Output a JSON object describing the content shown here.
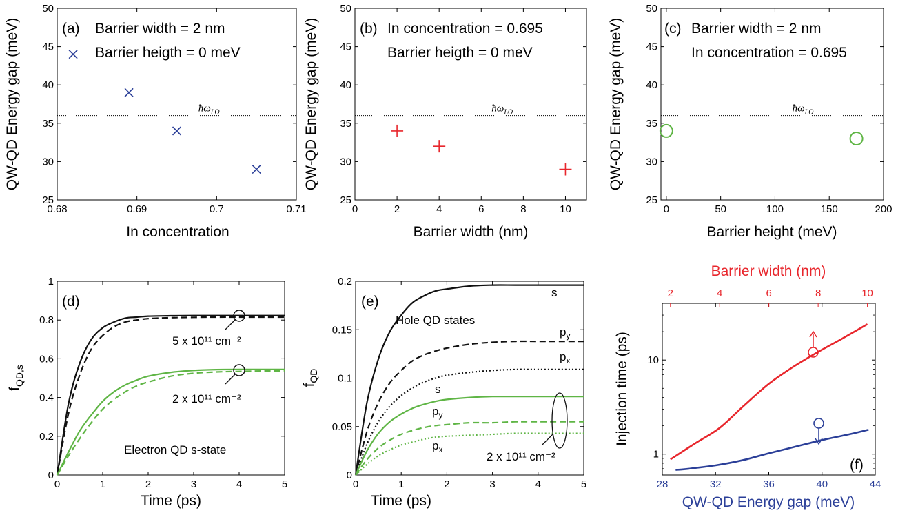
{
  "colors": {
    "blue": "#2b3f98",
    "red": "#e8262c",
    "green": "#5fb545",
    "black": "#111111"
  },
  "chart_data": [
    {
      "id": "a",
      "type": "scatter",
      "panel_label": "(a)",
      "xlabel": "In concentration",
      "ylabel": "QW-QD Energy gap (meV)",
      "xlim": [
        0.68,
        0.71
      ],
      "ylim": [
        25,
        50
      ],
      "xticks": [
        0.68,
        0.69,
        0.7,
        0.71
      ],
      "xtick_labels": [
        "0.68",
        "0.69",
        "0.7",
        "0.71"
      ],
      "yticks": [
        25,
        30,
        35,
        40,
        45,
        50
      ],
      "ytick_labels": [
        "25",
        "30",
        "35",
        "40",
        "45",
        "50"
      ],
      "annotations": [
        "Barrier width = 2 nm",
        "Barrier heigth = 0 meV"
      ],
      "reference_line": {
        "y": 36,
        "label": "ħω_LO"
      },
      "series": [
        {
          "marker": "x",
          "color": "#2b3f98",
          "x": [
            0.682,
            0.689,
            0.695,
            0.705
          ],
          "y": [
            44,
            39,
            34,
            29
          ]
        }
      ]
    },
    {
      "id": "b",
      "type": "scatter",
      "panel_label": "(b)",
      "xlabel": "Barrier width (nm)",
      "ylabel": "QW-QD Energy gap (meV)",
      "xlim": [
        0,
        11
      ],
      "ylim": [
        25,
        50
      ],
      "xticks": [
        0,
        2,
        4,
        6,
        8,
        10
      ],
      "xtick_labels": [
        "0",
        "2",
        "4",
        "6",
        "8",
        "10"
      ],
      "yticks": [
        25,
        30,
        35,
        40,
        45,
        50
      ],
      "ytick_labels": [
        "25",
        "30",
        "35",
        "40",
        "45",
        "50"
      ],
      "annotations": [
        "In concentration = 0.695",
        "Barrier heigth = 0 meV"
      ],
      "reference_line": {
        "y": 36,
        "label": "ħω_LO"
      },
      "series": [
        {
          "marker": "+",
          "color": "#e8262c",
          "x": [
            2,
            4,
            10
          ],
          "y": [
            34,
            32,
            29
          ]
        }
      ]
    },
    {
      "id": "c",
      "type": "scatter",
      "panel_label": "(c)",
      "xlabel": "Barrier height (meV)",
      "ylabel": "QW-QD Energy gap (meV)",
      "xlim": [
        -5,
        200
      ],
      "ylim": [
        25,
        50
      ],
      "xticks": [
        0,
        50,
        100,
        150,
        200
      ],
      "xtick_labels": [
        "0",
        "50",
        "100",
        "150",
        "200"
      ],
      "yticks": [
        25,
        30,
        35,
        40,
        45,
        50
      ],
      "ytick_labels": [
        "25",
        "30",
        "35",
        "40",
        "45",
        "50"
      ],
      "annotations": [
        "Barrier width = 2 nm",
        "In concentration = 0.695"
      ],
      "reference_line": {
        "y": 36,
        "label": "ħω_LO"
      },
      "series": [
        {
          "marker": "o",
          "color": "#5fb545",
          "x": [
            0,
            175
          ],
          "y": [
            34,
            33
          ]
        }
      ]
    },
    {
      "id": "d",
      "type": "line",
      "panel_label": "(d)",
      "xlabel": "Time (ps)",
      "ylabel": "f_QD,s",
      "xlim": [
        0,
        5
      ],
      "ylim": [
        0,
        1
      ],
      "xticks": [
        0,
        1,
        2,
        3,
        4,
        5
      ],
      "xtick_labels": [
        "0",
        "1",
        "2",
        "3",
        "4",
        "5"
      ],
      "yticks": [
        0,
        0.2,
        0.4,
        0.6,
        0.8,
        1
      ],
      "ytick_labels": [
        "0",
        "0.2",
        "0.4",
        "0.6",
        "0.8",
        "1"
      ],
      "annotations": [
        "Electron QD s-state",
        "5 x 10¹¹ cm⁻²",
        "2 x 10¹¹ cm⁻²"
      ],
      "x": [
        0,
        0.25,
        0.5,
        0.75,
        1,
        1.25,
        1.5,
        1.75,
        2,
        2.5,
        3,
        3.5,
        4,
        4.5,
        5
      ],
      "series": [
        {
          "color": "#111111",
          "dash": "solid",
          "y": [
            0,
            0.37,
            0.58,
            0.7,
            0.76,
            0.79,
            0.81,
            0.815,
            0.82,
            0.822,
            0.823,
            0.823,
            0.823,
            0.823,
            0.823
          ]
        },
        {
          "color": "#111111",
          "dash": "dashed",
          "y": [
            0,
            0.32,
            0.52,
            0.65,
            0.72,
            0.765,
            0.79,
            0.8,
            0.807,
            0.812,
            0.814,
            0.815,
            0.815,
            0.815,
            0.815
          ]
        },
        {
          "color": "#5fb545",
          "dash": "solid",
          "y": [
            0,
            0.12,
            0.23,
            0.31,
            0.38,
            0.43,
            0.465,
            0.49,
            0.51,
            0.53,
            0.54,
            0.544,
            0.545,
            0.545,
            0.545
          ]
        },
        {
          "color": "#5fb545",
          "dash": "dashed",
          "y": [
            0,
            0.1,
            0.19,
            0.27,
            0.34,
            0.39,
            0.43,
            0.46,
            0.48,
            0.51,
            0.525,
            0.532,
            0.535,
            0.537,
            0.538
          ]
        }
      ]
    },
    {
      "id": "e",
      "type": "line",
      "panel_label": "(e)",
      "xlabel": "Time (ps)",
      "ylabel": "f_QD",
      "xlim": [
        0,
        5
      ],
      "ylim": [
        0,
        0.2
      ],
      "xticks": [
        0,
        1,
        2,
        3,
        4,
        5
      ],
      "xtick_labels": [
        "0",
        "1",
        "2",
        "3",
        "4",
        "5"
      ],
      "yticks": [
        0,
        0.05,
        0.1,
        0.15,
        0.2
      ],
      "ytick_labels": [
        "0",
        "0.05",
        "0.1",
        "0.15",
        "0.2"
      ],
      "annotations": [
        "Hole QD states",
        "2 x 10¹¹ cm⁻²"
      ],
      "x": [
        0,
        0.25,
        0.5,
        0.75,
        1,
        1.25,
        1.5,
        1.75,
        2,
        2.5,
        3,
        3.5,
        4,
        4.5,
        5
      ],
      "series": [
        {
          "label": "s",
          "color": "#111111",
          "dash": "solid",
          "y": [
            0,
            0.075,
            0.12,
            0.148,
            0.165,
            0.178,
            0.185,
            0.19,
            0.192,
            0.195,
            0.196,
            0.196,
            0.196,
            0.196,
            0.196
          ]
        },
        {
          "label": "p_y",
          "color": "#111111",
          "dash": "dashed",
          "y": [
            0,
            0.045,
            0.075,
            0.095,
            0.108,
            0.118,
            0.124,
            0.128,
            0.131,
            0.135,
            0.137,
            0.138,
            0.138,
            0.138,
            0.138
          ]
        },
        {
          "label": "p_x",
          "color": "#111111",
          "dash": "dotted",
          "y": [
            0,
            0.032,
            0.055,
            0.071,
            0.082,
            0.09,
            0.096,
            0.1,
            0.103,
            0.106,
            0.108,
            0.109,
            0.109,
            0.109,
            0.109
          ]
        },
        {
          "label": "s",
          "color": "#5fb545",
          "dash": "solid",
          "y": [
            0,
            0.025,
            0.043,
            0.055,
            0.063,
            0.069,
            0.073,
            0.076,
            0.078,
            0.08,
            0.081,
            0.081,
            0.081,
            0.081,
            0.081
          ]
        },
        {
          "label": "p_y",
          "color": "#5fb545",
          "dash": "dashed",
          "y": [
            0,
            0.016,
            0.028,
            0.036,
            0.042,
            0.046,
            0.049,
            0.051,
            0.052,
            0.054,
            0.054,
            0.055,
            0.055,
            0.055,
            0.055
          ]
        },
        {
          "label": "p_x",
          "color": "#5fb545",
          "dash": "dotted",
          "y": [
            0,
            0.011,
            0.02,
            0.026,
            0.031,
            0.034,
            0.037,
            0.039,
            0.04,
            0.041,
            0.042,
            0.043,
            0.043,
            0.043,
            0.043
          ]
        }
      ]
    },
    {
      "id": "f",
      "type": "line",
      "panel_label": "(f)",
      "xlabel": "QW-QD Energy gap (meV)",
      "ylabel": "Injection time (ps)",
      "x2label": "Barrier width (nm)",
      "xlim": [
        28,
        44
      ],
      "ylim_log": [
        0.6,
        40
      ],
      "y_scale": "log",
      "xticks": [
        28,
        32,
        36,
        40,
        44
      ],
      "xtick_labels": [
        "28",
        "32",
        "36",
        "40",
        "44"
      ],
      "x2lim": [
        1.67,
        10.32
      ],
      "x2ticks": [
        2,
        4,
        6,
        8,
        10
      ],
      "x2tick_labels": [
        "2",
        "4",
        "6",
        "8",
        "10"
      ],
      "yticks": [
        1,
        10
      ],
      "ytick_labels": [
        "1",
        "10"
      ],
      "series": [
        {
          "axis": "top",
          "color": "#e8262c",
          "x": [
            2,
            3,
            4,
            5,
            6,
            7,
            8,
            9,
            10
          ],
          "y": [
            0.88,
            1.3,
            1.9,
            3.3,
            5.6,
            8.5,
            12.2,
            17,
            24
          ]
        },
        {
          "axis": "bottom",
          "color": "#2b3f98",
          "x": [
            29,
            30,
            32,
            34,
            36,
            38,
            40,
            42,
            43.5
          ],
          "y": [
            0.68,
            0.7,
            0.76,
            0.86,
            1.02,
            1.2,
            1.41,
            1.62,
            1.82
          ]
        }
      ]
    }
  ]
}
